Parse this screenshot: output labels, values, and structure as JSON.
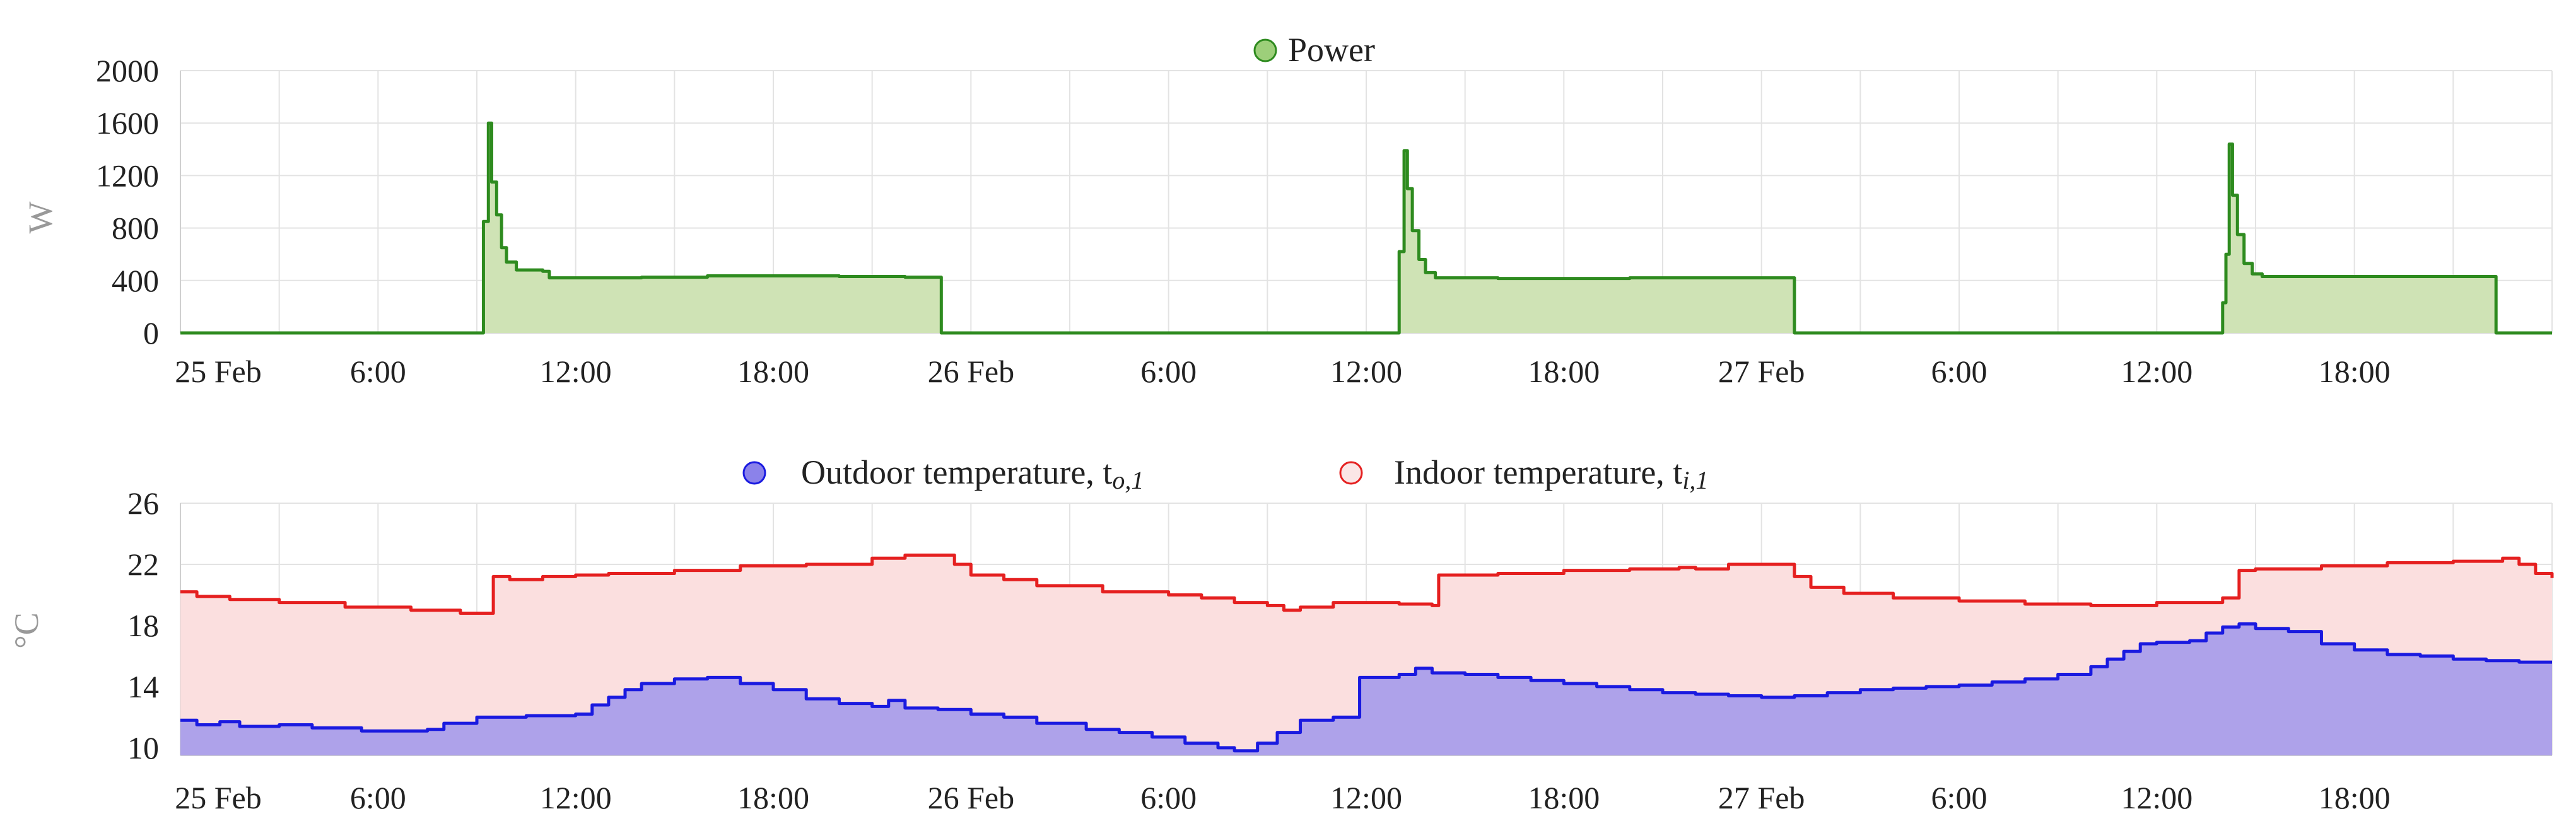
{
  "chart_data": [
    {
      "type": "area",
      "legend": [
        "Power"
      ],
      "legend_placement": "top-center",
      "ylabel": "W",
      "ylim": [
        0,
        2000
      ],
      "yticks": [
        "0",
        "400",
        "800",
        "1200",
        "1600",
        "2000"
      ],
      "xlim": [
        0,
        72
      ],
      "xticks": [
        {
          "at": 0,
          "label": "25 Feb"
        },
        {
          "at": 6,
          "label": "6:00"
        },
        {
          "at": 12,
          "label": "12:00"
        },
        {
          "at": 18,
          "label": "18:00"
        },
        {
          "at": 24,
          "label": "26 Feb"
        },
        {
          "at": 30,
          "label": "6:00"
        },
        {
          "at": 36,
          "label": "12:00"
        },
        {
          "at": 42,
          "label": "18:00"
        },
        {
          "at": 48,
          "label": "27 Feb"
        },
        {
          "at": 54,
          "label": "6:00"
        },
        {
          "at": 60,
          "label": "12:00"
        },
        {
          "at": 66,
          "label": "18:00"
        }
      ],
      "grid": true,
      "series": [
        {
          "name": "Power",
          "color": "#2e8b1f",
          "fill": "#cfe3b5",
          "points": [
            [
              0,
              0
            ],
            [
              9.2,
              0
            ],
            [
              9.2,
              850
            ],
            [
              9.35,
              1600
            ],
            [
              9.45,
              1150
            ],
            [
              9.6,
              900
            ],
            [
              9.75,
              650
            ],
            [
              9.9,
              540
            ],
            [
              10.2,
              480
            ],
            [
              11.0,
              470
            ],
            [
              11.2,
              420
            ],
            [
              14.0,
              425
            ],
            [
              16.0,
              435
            ],
            [
              20.0,
              430
            ],
            [
              22.0,
              425
            ],
            [
              23.1,
              420
            ],
            [
              23.1,
              0
            ],
            [
              37.0,
              0
            ],
            [
              37.0,
              620
            ],
            [
              37.15,
              1390
            ],
            [
              37.25,
              1100
            ],
            [
              37.4,
              780
            ],
            [
              37.6,
              560
            ],
            [
              37.8,
              460
            ],
            [
              38.1,
              420
            ],
            [
              40.0,
              415
            ],
            [
              44.0,
              420
            ],
            [
              49.0,
              415
            ],
            [
              49.0,
              0
            ],
            [
              62.0,
              0
            ],
            [
              62.0,
              230
            ],
            [
              62.1,
              600
            ],
            [
              62.2,
              1440
            ],
            [
              62.3,
              1050
            ],
            [
              62.45,
              750
            ],
            [
              62.65,
              530
            ],
            [
              62.9,
              450
            ],
            [
              63.2,
              430
            ],
            [
              67.0,
              430
            ],
            [
              70.3,
              430
            ],
            [
              70.3,
              0
            ],
            [
              72,
              0
            ]
          ]
        }
      ]
    },
    {
      "type": "area",
      "legend": [
        "Outdoor temperature, t",
        "Indoor temperature, t"
      ],
      "legend_placement": "top-center",
      "ylabel": "°C",
      "ylim": [
        9.5,
        26
      ],
      "yticks": [
        "10",
        "14",
        "18",
        "22",
        "26"
      ],
      "xlim": [
        0,
        72
      ],
      "xticks": [
        {
          "at": 0,
          "label": "25 Feb"
        },
        {
          "at": 6,
          "label": "6:00"
        },
        {
          "at": 12,
          "label": "12:00"
        },
        {
          "at": 18,
          "label": "18:00"
        },
        {
          "at": 24,
          "label": "26 Feb"
        },
        {
          "at": 30,
          "label": "6:00"
        },
        {
          "at": 36,
          "label": "12:00"
        },
        {
          "at": 42,
          "label": "18:00"
        },
        {
          "at": 48,
          "label": "27 Feb"
        },
        {
          "at": 54,
          "label": "6:00"
        },
        {
          "at": 60,
          "label": "12:00"
        },
        {
          "at": 66,
          "label": "18:00"
        }
      ],
      "grid": true,
      "series": [
        {
          "name": "Outdoor temperature, t",
          "subscript": "o,1",
          "color": "#1a1ae0",
          "fill": "#aea2ea",
          "points": [
            [
              0,
              11.8
            ],
            [
              0.5,
              11.5
            ],
            [
              1.2,
              11.7
            ],
            [
              1.8,
              11.4
            ],
            [
              3.0,
              11.5
            ],
            [
              4.0,
              11.3
            ],
            [
              5.5,
              11.1
            ],
            [
              7.5,
              11.2
            ],
            [
              8.0,
              11.6
            ],
            [
              9.0,
              12.0
            ],
            [
              10.5,
              12.1
            ],
            [
              12.0,
              12.2
            ],
            [
              12.5,
              12.8
            ],
            [
              13.0,
              13.3
            ],
            [
              13.5,
              13.8
            ],
            [
              14.0,
              14.2
            ],
            [
              15.0,
              14.5
            ],
            [
              16.0,
              14.6
            ],
            [
              17.0,
              14.2
            ],
            [
              18.0,
              13.8
            ],
            [
              19.0,
              13.2
            ],
            [
              20.0,
              12.9
            ],
            [
              21.0,
              12.7
            ],
            [
              21.5,
              13.1
            ],
            [
              22.0,
              12.6
            ],
            [
              23.0,
              12.5
            ],
            [
              24.0,
              12.2
            ],
            [
              25.0,
              12.0
            ],
            [
              26.0,
              11.6
            ],
            [
              27.5,
              11.2
            ],
            [
              28.5,
              11.0
            ],
            [
              29.5,
              10.7
            ],
            [
              30.5,
              10.3
            ],
            [
              31.5,
              10.0
            ],
            [
              32.0,
              9.8
            ],
            [
              32.7,
              10.3
            ],
            [
              33.3,
              11.0
            ],
            [
              34.0,
              11.8
            ],
            [
              35.0,
              12.0
            ],
            [
              35.8,
              12.1
            ],
            [
              35.8,
              14.6
            ],
            [
              37.0,
              14.8
            ],
            [
              37.5,
              15.2
            ],
            [
              38.0,
              14.9
            ],
            [
              39.0,
              14.8
            ],
            [
              40.0,
              14.6
            ],
            [
              41.0,
              14.4
            ],
            [
              42.0,
              14.2
            ],
            [
              43.0,
              14.0
            ],
            [
              44.0,
              13.8
            ],
            [
              45.0,
              13.6
            ],
            [
              46.0,
              13.5
            ],
            [
              47.0,
              13.4
            ],
            [
              48.0,
              13.3
            ],
            [
              49.0,
              13.4
            ],
            [
              50.0,
              13.6
            ],
            [
              51.0,
              13.8
            ],
            [
              52.0,
              13.9
            ],
            [
              53.0,
              14.0
            ],
            [
              54.0,
              14.1
            ],
            [
              55.0,
              14.3
            ],
            [
              56.0,
              14.5
            ],
            [
              57.0,
              14.8
            ],
            [
              58.0,
              15.3
            ],
            [
              58.5,
              15.8
            ],
            [
              59.0,
              16.3
            ],
            [
              59.5,
              16.8
            ],
            [
              60.0,
              16.9
            ],
            [
              61.0,
              17.0
            ],
            [
              61.5,
              17.5
            ],
            [
              62.0,
              17.9
            ],
            [
              62.5,
              18.1
            ],
            [
              63.0,
              17.8
            ],
            [
              64.0,
              17.6
            ],
            [
              65.0,
              16.8
            ],
            [
              66.0,
              16.4
            ],
            [
              67.0,
              16.1
            ],
            [
              68.0,
              16.0
            ],
            [
              69.0,
              15.8
            ],
            [
              70.0,
              15.7
            ],
            [
              71.0,
              15.6
            ],
            [
              72,
              15.6
            ]
          ]
        },
        {
          "name": "Indoor temperature, t",
          "subscript": "i,1",
          "color": "#e52020",
          "fill": "#fbdfdf",
          "points": [
            [
              0,
              20.2
            ],
            [
              0.5,
              19.9
            ],
            [
              1.5,
              19.7
            ],
            [
              3.0,
              19.5
            ],
            [
              5.0,
              19.2
            ],
            [
              7.0,
              19.0
            ],
            [
              8.5,
              18.8
            ],
            [
              9.2,
              18.8
            ],
            [
              9.5,
              21.2
            ],
            [
              10.0,
              21.0
            ],
            [
              11.0,
              21.2
            ],
            [
              12.0,
              21.3
            ],
            [
              13.0,
              21.4
            ],
            [
              15.0,
              21.6
            ],
            [
              17.0,
              21.9
            ],
            [
              19.0,
              22.0
            ],
            [
              20.0,
              22.0
            ],
            [
              21.0,
              22.4
            ],
            [
              22.0,
              22.6
            ],
            [
              23.2,
              22.6
            ],
            [
              23.5,
              22.0
            ],
            [
              24.0,
              21.3
            ],
            [
              25.0,
              21.0
            ],
            [
              26.0,
              20.6
            ],
            [
              28.0,
              20.2
            ],
            [
              30.0,
              20.0
            ],
            [
              31.0,
              19.8
            ],
            [
              32.0,
              19.5
            ],
            [
              33.0,
              19.3
            ],
            [
              33.5,
              19.0
            ],
            [
              34.0,
              19.2
            ],
            [
              35.0,
              19.5
            ],
            [
              37.0,
              19.4
            ],
            [
              38.0,
              19.3
            ],
            [
              38.2,
              21.3
            ],
            [
              40.0,
              21.4
            ],
            [
              42.0,
              21.6
            ],
            [
              44.0,
              21.7
            ],
            [
              45.5,
              21.8
            ],
            [
              46.0,
              21.7
            ],
            [
              47.0,
              22.0
            ],
            [
              48.0,
              22.0
            ],
            [
              48.7,
              22.0
            ],
            [
              49.0,
              21.2
            ],
            [
              49.5,
              20.5
            ],
            [
              50.5,
              20.1
            ],
            [
              52.0,
              19.8
            ],
            [
              54.0,
              19.6
            ],
            [
              56.0,
              19.4
            ],
            [
              58.0,
              19.3
            ],
            [
              60.0,
              19.5
            ],
            [
              62.0,
              19.8
            ],
            [
              62.5,
              21.6
            ],
            [
              63.0,
              21.7
            ],
            [
              65.0,
              21.9
            ],
            [
              67.0,
              22.1
            ],
            [
              69.0,
              22.2
            ],
            [
              70.5,
              22.4
            ],
            [
              71.0,
              22.0
            ],
            [
              71.5,
              21.4
            ],
            [
              72,
              21.1
            ]
          ]
        }
      ]
    }
  ]
}
